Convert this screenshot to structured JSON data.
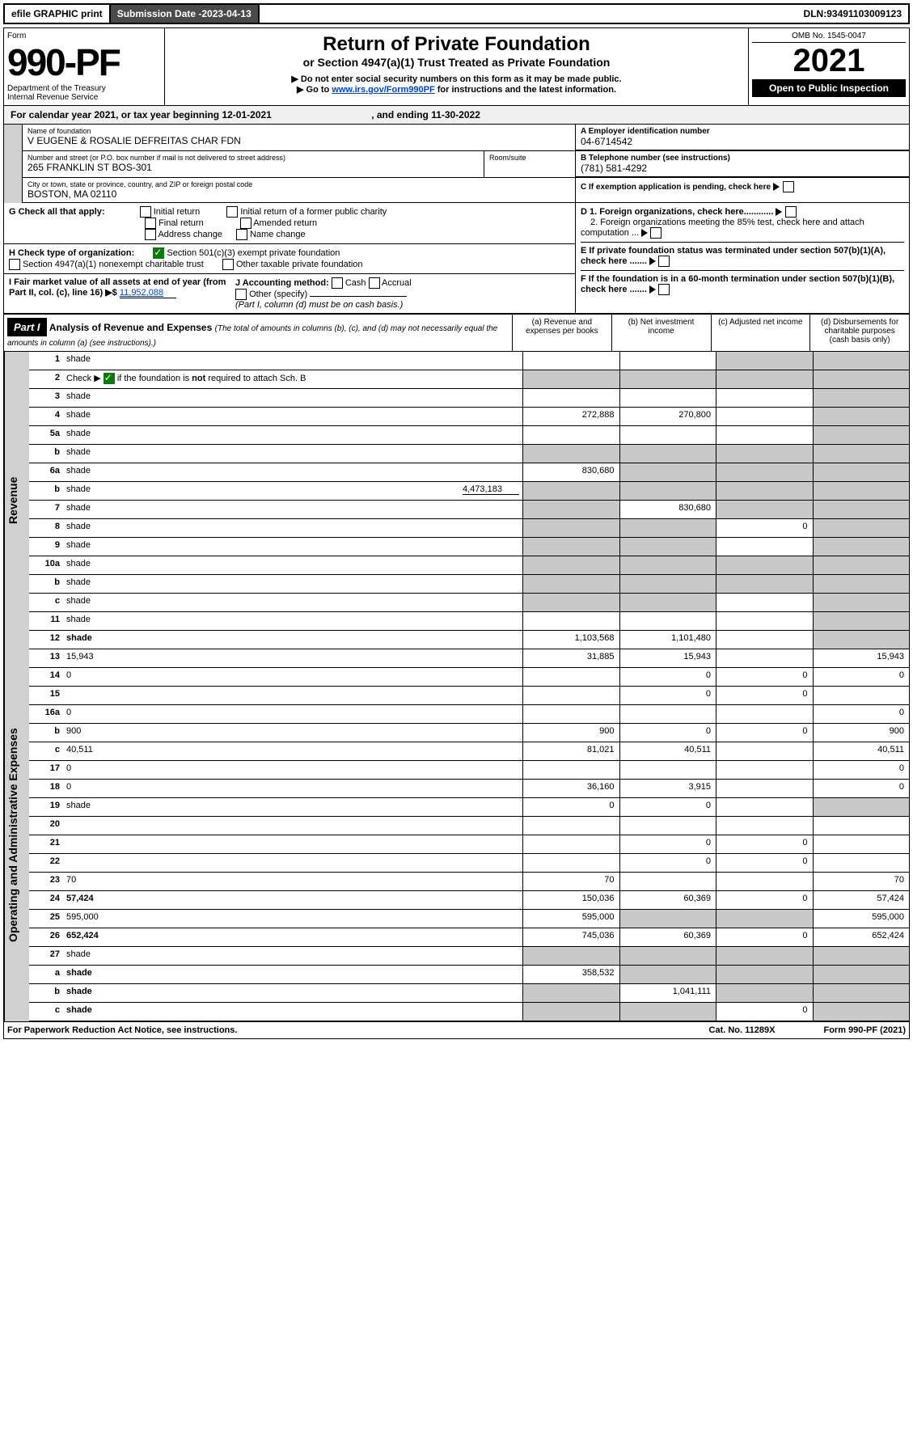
{
  "topbar": {
    "efile": "efile GRAPHIC print",
    "subdate_label": "Submission Date - ",
    "subdate": "2023-04-13",
    "dln_label": "DLN: ",
    "dln": "93491103009123"
  },
  "header": {
    "form_label": "Form",
    "form_num": "990-PF",
    "dept": "Department of the Treasury",
    "irs": "Internal Revenue Service",
    "title": "Return of Private Foundation",
    "subtitle": "or Section 4947(a)(1) Trust Treated as Private Foundation",
    "note1": "▶ Do not enter social security numbers on this form as it may be made public.",
    "note2_pre": "▶ Go to ",
    "note2_link": "www.irs.gov/Form990PF",
    "note2_post": " for instructions and the latest information.",
    "omb": "OMB No. 1545-0047",
    "year": "2021",
    "open": "Open to Public Inspection"
  },
  "cal": {
    "text_pre": "For calendar year 2021, or tax year beginning ",
    "begin": "12-01-2021",
    "text_mid": " , and ending ",
    "end": "11-30-2022"
  },
  "info": {
    "name_label": "Name of foundation",
    "name": "V EUGENE & ROSALIE DEFREITAS CHAR FDN",
    "addr_label": "Number and street (or P.O. box number if mail is not delivered to street address)",
    "addr": "265 FRANKLIN ST BOS-301",
    "room_label": "Room/suite",
    "city_label": "City or town, state or province, country, and ZIP or foreign postal code",
    "city": "BOSTON, MA  02110",
    "a_label": "A Employer identification number",
    "a_val": "04-6714542",
    "b_label": "B Telephone number (see instructions)",
    "b_val": "(781) 581-4292",
    "c_label": "C If exemption application is pending, check here"
  },
  "checks": {
    "g_label": "G Check all that apply:",
    "g_opts": [
      "Initial return",
      "Initial return of a former public charity",
      "Final return",
      "Amended return",
      "Address change",
      "Name change"
    ],
    "h_label": "H Check type of organization:",
    "h1": "Section 501(c)(3) exempt private foundation",
    "h2": "Section 4947(a)(1) nonexempt charitable trust",
    "h3": "Other taxable private foundation",
    "i_label": "I Fair market value of all assets at end of year (from Part II, col. (c), line 16) ▶$ ",
    "i_val": "11,952,088",
    "j_label": "J Accounting method:",
    "j_opts": [
      "Cash",
      "Accrual",
      "Other (specify)"
    ],
    "j_note": "(Part I, column (d) must be on cash basis.)",
    "d1": "D 1. Foreign organizations, check here............",
    "d2": "2. Foreign organizations meeting the 85% test, check here and attach computation ...",
    "e": "E  If private foundation status was terminated under section 507(b)(1)(A), check here .......",
    "f": "F  If the foundation is in a 60-month termination under section 507(b)(1)(B), check here .......",
    "h_checked": true
  },
  "part1": {
    "label": "Part I",
    "title": "Analysis of Revenue and Expenses",
    "note": " (The total of amounts in columns (b), (c), and (d) may not necessarily equal the amounts in column (a) (see instructions).)",
    "cols": {
      "a": "(a)  Revenue and expenses per books",
      "b": "(b)  Net investment income",
      "c": "(c)  Adjusted net income",
      "d": "(d)  Disbursements for charitable purposes (cash basis only)"
    }
  },
  "sections": {
    "revenue": "Revenue",
    "opex": "Operating and Administrative Expenses"
  },
  "lines": [
    {
      "n": "1",
      "d": "shade",
      "a": "",
      "b": "",
      "c": "shade"
    },
    {
      "n": "2",
      "d": "shade",
      "a": "shade",
      "b": "shade",
      "c": "shade",
      "green": true
    },
    {
      "n": "3",
      "d": "shade",
      "a": "",
      "b": "",
      "c": ""
    },
    {
      "n": "4",
      "d": "shade",
      "a": "272,888",
      "b": "270,800",
      "c": ""
    },
    {
      "n": "5a",
      "d": "shade",
      "a": "",
      "b": "",
      "c": ""
    },
    {
      "n": "b",
      "d": "shade",
      "a": "shade",
      "b": "shade",
      "c": "shade",
      "inset": true
    },
    {
      "n": "6a",
      "d": "shade",
      "a": "830,680",
      "b": "shade",
      "c": "shade"
    },
    {
      "n": "b",
      "d": "shade",
      "inset": true,
      "inline_val": "4,473,183",
      "a": "shade",
      "b": "shade",
      "c": "shade"
    },
    {
      "n": "7",
      "d": "shade",
      "a": "shade",
      "b": "830,680",
      "c": "shade"
    },
    {
      "n": "8",
      "d": "shade",
      "a": "shade",
      "b": "shade",
      "c": "0"
    },
    {
      "n": "9",
      "d": "shade",
      "a": "shade",
      "b": "shade",
      "c": ""
    },
    {
      "n": "10a",
      "d": "shade",
      "a": "shade",
      "b": "shade",
      "c": "shade",
      "inset": true
    },
    {
      "n": "b",
      "d": "shade",
      "a": "shade",
      "b": "shade",
      "c": "shade",
      "inset": true
    },
    {
      "n": "c",
      "d": "shade",
      "a": "shade",
      "b": "shade",
      "c": ""
    },
    {
      "n": "11",
      "d": "shade",
      "a": "",
      "b": "",
      "c": ""
    },
    {
      "n": "12",
      "d": "shade",
      "a": "1,103,568",
      "b": "1,101,480",
      "c": "",
      "bold": true
    }
  ],
  "lines2": [
    {
      "n": "13",
      "d": "15,943",
      "a": "31,885",
      "b": "15,943",
      "c": ""
    },
    {
      "n": "14",
      "d": "0",
      "a": "",
      "b": "0",
      "c": "0"
    },
    {
      "n": "15",
      "d": "",
      "a": "",
      "b": "0",
      "c": "0"
    },
    {
      "n": "16a",
      "d": "0",
      "a": "",
      "b": "",
      "c": ""
    },
    {
      "n": "b",
      "d": "900",
      "a": "900",
      "b": "0",
      "c": "0"
    },
    {
      "n": "c",
      "d": "40,511",
      "a": "81,021",
      "b": "40,511",
      "c": ""
    },
    {
      "n": "17",
      "d": "0",
      "a": "",
      "b": "",
      "c": ""
    },
    {
      "n": "18",
      "d": "0",
      "a": "36,160",
      "b": "3,915",
      "c": ""
    },
    {
      "n": "19",
      "d": "shade",
      "a": "0",
      "b": "0",
      "c": ""
    },
    {
      "n": "20",
      "d": "",
      "a": "",
      "b": "",
      "c": ""
    },
    {
      "n": "21",
      "d": "",
      "a": "",
      "b": "0",
      "c": "0"
    },
    {
      "n": "22",
      "d": "",
      "a": "",
      "b": "0",
      "c": "0"
    },
    {
      "n": "23",
      "d": "70",
      "a": "70",
      "b": "",
      "c": ""
    },
    {
      "n": "24",
      "d": "57,424",
      "a": "150,036",
      "b": "60,369",
      "c": "0",
      "bold": true
    },
    {
      "n": "25",
      "d": "595,000",
      "a": "595,000",
      "b": "shade",
      "c": "shade"
    },
    {
      "n": "26",
      "d": "652,424",
      "a": "745,036",
      "b": "60,369",
      "c": "0",
      "bold": true
    },
    {
      "n": "27",
      "d": "shade",
      "a": "shade",
      "b": "shade",
      "c": "shade"
    },
    {
      "n": "a",
      "d": "shade",
      "a": "358,532",
      "b": "shade",
      "c": "shade",
      "bold": true
    },
    {
      "n": "b",
      "d": "shade",
      "a": "shade",
      "b": "1,041,111",
      "c": "shade",
      "bold": true
    },
    {
      "n": "c",
      "d": "shade",
      "a": "shade",
      "b": "shade",
      "c": "0",
      "bold": true
    }
  ],
  "footer": {
    "left": "For Paperwork Reduction Act Notice, see instructions.",
    "mid": "Cat. No. 11289X",
    "right": "Form 990-PF (2021)"
  },
  "colors": {
    "shade": "#c8c8c8",
    "link": "#0044cc",
    "dark": "#4a4a4a"
  }
}
